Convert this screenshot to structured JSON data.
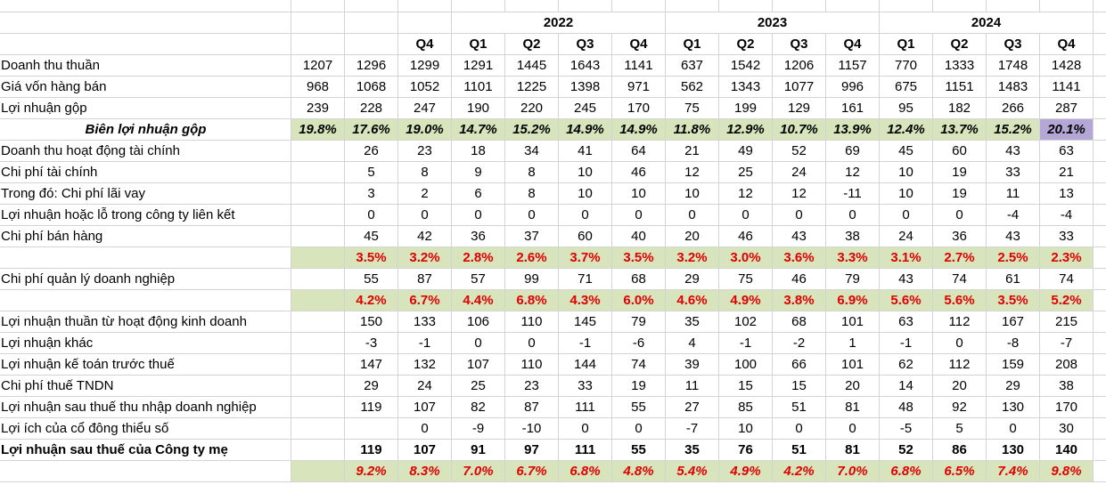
{
  "header": {
    "years": [
      "2022",
      "2023",
      "2024"
    ],
    "quarters": [
      null,
      null,
      "Q4",
      "Q1",
      "Q2",
      "Q3",
      "Q4",
      "Q1",
      "Q2",
      "Q3",
      "Q4",
      "Q1",
      "Q2",
      "Q3",
      "Q4"
    ]
  },
  "rows": [
    {
      "label": "Doanh thu thuần",
      "values": [
        1207,
        1296,
        1299,
        1291,
        1445,
        1643,
        1141,
        637,
        1542,
        1206,
        1157,
        770,
        1333,
        1748,
        1428
      ]
    },
    {
      "label": "Giá vốn hàng bán",
      "values": [
        968,
        1068,
        1052,
        1101,
        1225,
        1398,
        971,
        562,
        1343,
        1077,
        996,
        675,
        1151,
        1483,
        1141
      ]
    },
    {
      "label": "Lợi nhuận gộp",
      "values": [
        239,
        228,
        247,
        190,
        220,
        245,
        170,
        75,
        199,
        129,
        161,
        95,
        182,
        266,
        287
      ]
    },
    {
      "label": "Biên lợi nhuận gộp",
      "values": [
        "19.8%",
        "17.6%",
        "19.0%",
        "14.7%",
        "15.2%",
        "14.9%",
        "14.9%",
        "11.8%",
        "12.9%",
        "10.7%",
        "13.9%",
        "12.4%",
        "13.7%",
        "15.2%",
        "20.1%"
      ]
    },
    {
      "label": "Doanh thu hoạt động tài chính",
      "values": [
        null,
        26,
        23,
        18,
        34,
        41,
        64,
        21,
        49,
        52,
        69,
        45,
        60,
        43,
        63
      ]
    },
    {
      "label": "Chi phí tài chính",
      "values": [
        null,
        5,
        8,
        9,
        8,
        10,
        46,
        12,
        25,
        24,
        12,
        10,
        19,
        33,
        21
      ]
    },
    {
      "label": "Trong đó: Chi phí lãi vay",
      "values": [
        null,
        3,
        2,
        6,
        8,
        10,
        10,
        10,
        12,
        12,
        -11,
        10,
        19,
        11,
        13
      ]
    },
    {
      "label": "Lợi nhuận hoặc lỗ trong công ty liên kết",
      "values": [
        null,
        0,
        0,
        0,
        0,
        0,
        0,
        0,
        0,
        0,
        0,
        0,
        0,
        -4,
        -4
      ]
    },
    {
      "label": "Chi phí bán hàng",
      "values": [
        null,
        45,
        42,
        36,
        37,
        60,
        40,
        20,
        46,
        43,
        38,
        24,
        36,
        43,
        33
      ]
    },
    {
      "values": [
        null,
        "3.5%",
        "3.2%",
        "2.8%",
        "2.6%",
        "3.7%",
        "3.5%",
        "3.2%",
        "3.0%",
        "3.6%",
        "3.3%",
        "3.1%",
        "2.7%",
        "2.5%",
        "2.3%"
      ]
    },
    {
      "label": "Chi phí quản lý doanh nghiệp",
      "values": [
        null,
        55,
        87,
        57,
        99,
        71,
        68,
        29,
        75,
        46,
        79,
        43,
        74,
        61,
        74
      ]
    },
    {
      "values": [
        null,
        "4.2%",
        "6.7%",
        "4.4%",
        "6.8%",
        "4.3%",
        "6.0%",
        "4.6%",
        "4.9%",
        "3.8%",
        "6.9%",
        "5.6%",
        "5.6%",
        "3.5%",
        "5.2%"
      ]
    },
    {
      "label": "Lợi nhuận thuần từ hoạt động kinh doanh",
      "values": [
        null,
        150,
        133,
        106,
        110,
        145,
        79,
        35,
        102,
        68,
        101,
        63,
        112,
        167,
        215
      ]
    },
    {
      "label": "Lợi nhuận khác",
      "values": [
        null,
        -3,
        -1,
        0,
        0,
        -1,
        -6,
        4,
        -1,
        -2,
        1,
        -1,
        0,
        -8,
        -7
      ]
    },
    {
      "label": "Lợi nhuận kế toán trước thuế",
      "values": [
        null,
        147,
        132,
        107,
        110,
        144,
        74,
        39,
        100,
        66,
        101,
        62,
        112,
        159,
        208
      ]
    },
    {
      "label": "Chi phí thuế TNDN",
      "values": [
        null,
        29,
        24,
        25,
        23,
        33,
        19,
        11,
        15,
        15,
        20,
        14,
        20,
        29,
        38
      ]
    },
    {
      "label": "Lợi nhuận sau thuế thu nhập doanh nghiệp",
      "values": [
        null,
        119,
        107,
        82,
        87,
        111,
        55,
        27,
        85,
        51,
        81,
        48,
        92,
        130,
        170
      ]
    },
    {
      "label": "Lợi ích của cổ đông thiểu số",
      "values": [
        null,
        null,
        0,
        -9,
        -10,
        0,
        0,
        -7,
        10,
        0,
        0,
        -5,
        5,
        0,
        30
      ]
    },
    {
      "label": "Lợi nhuận sau thuế của Công ty mẹ",
      "values": [
        null,
        119,
        107,
        91,
        97,
        111,
        55,
        35,
        76,
        51,
        81,
        52,
        86,
        130,
        140
      ]
    },
    {
      "values": [
        null,
        "9.2%",
        "8.3%",
        "7.0%",
        "6.7%",
        "6.8%",
        "4.8%",
        "5.4%",
        "4.9%",
        "4.2%",
        "7.0%",
        "6.8%",
        "6.5%",
        "7.4%",
        "9.8%"
      ]
    }
  ]
}
